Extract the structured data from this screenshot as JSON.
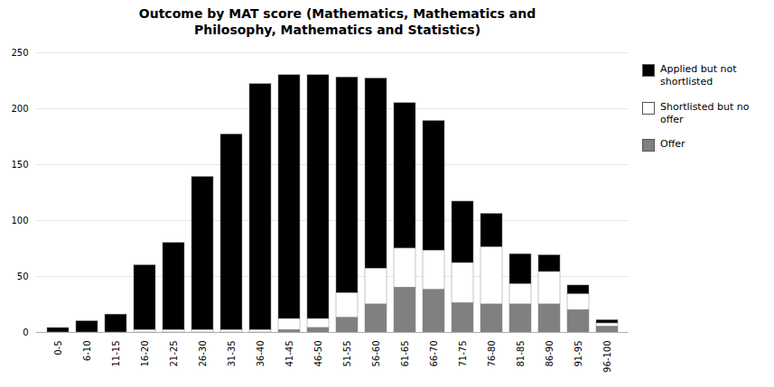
{
  "chart_data": {
    "type": "bar",
    "title": "Outcome by MAT score (Mathematics, Mathematics and\nPhilosophy, Mathematics and Statistics)",
    "categories": [
      "0-5",
      "6-10",
      "11-15",
      "16-20",
      "21-25",
      "26-30",
      "31-35",
      "36-40",
      "41-45",
      "46-50",
      "51-55",
      "56-60",
      "61-65",
      "66-70",
      "71-75",
      "76-80",
      "81-85",
      "86-90",
      "91-95",
      "96-100"
    ],
    "series": [
      {
        "name": "Applied but not\nshortlisted",
        "color": "#000000",
        "values": [
          4,
          10,
          16,
          58,
          78,
          137,
          175,
          220,
          218,
          218,
          193,
          170,
          130,
          116,
          55,
          30,
          27,
          15,
          8,
          3
        ]
      },
      {
        "name": "Shortlisted but no\noffer",
        "color": "#ffffff",
        "values": [
          0,
          0,
          0,
          2,
          2,
          2,
          2,
          2,
          10,
          8,
          22,
          32,
          35,
          35,
          36,
          51,
          18,
          29,
          14,
          3
        ]
      },
      {
        "name": "Offer",
        "color": "#808080",
        "values": [
          0,
          0,
          0,
          0,
          0,
          0,
          0,
          0,
          2,
          4,
          13,
          25,
          40,
          38,
          26,
          25,
          25,
          25,
          20,
          5
        ]
      }
    ],
    "stacked": true,
    "ylim": [
      0,
      250
    ],
    "yticks": [
      0,
      50,
      100,
      150,
      200,
      250
    ],
    "grid": true,
    "legend": "right"
  }
}
